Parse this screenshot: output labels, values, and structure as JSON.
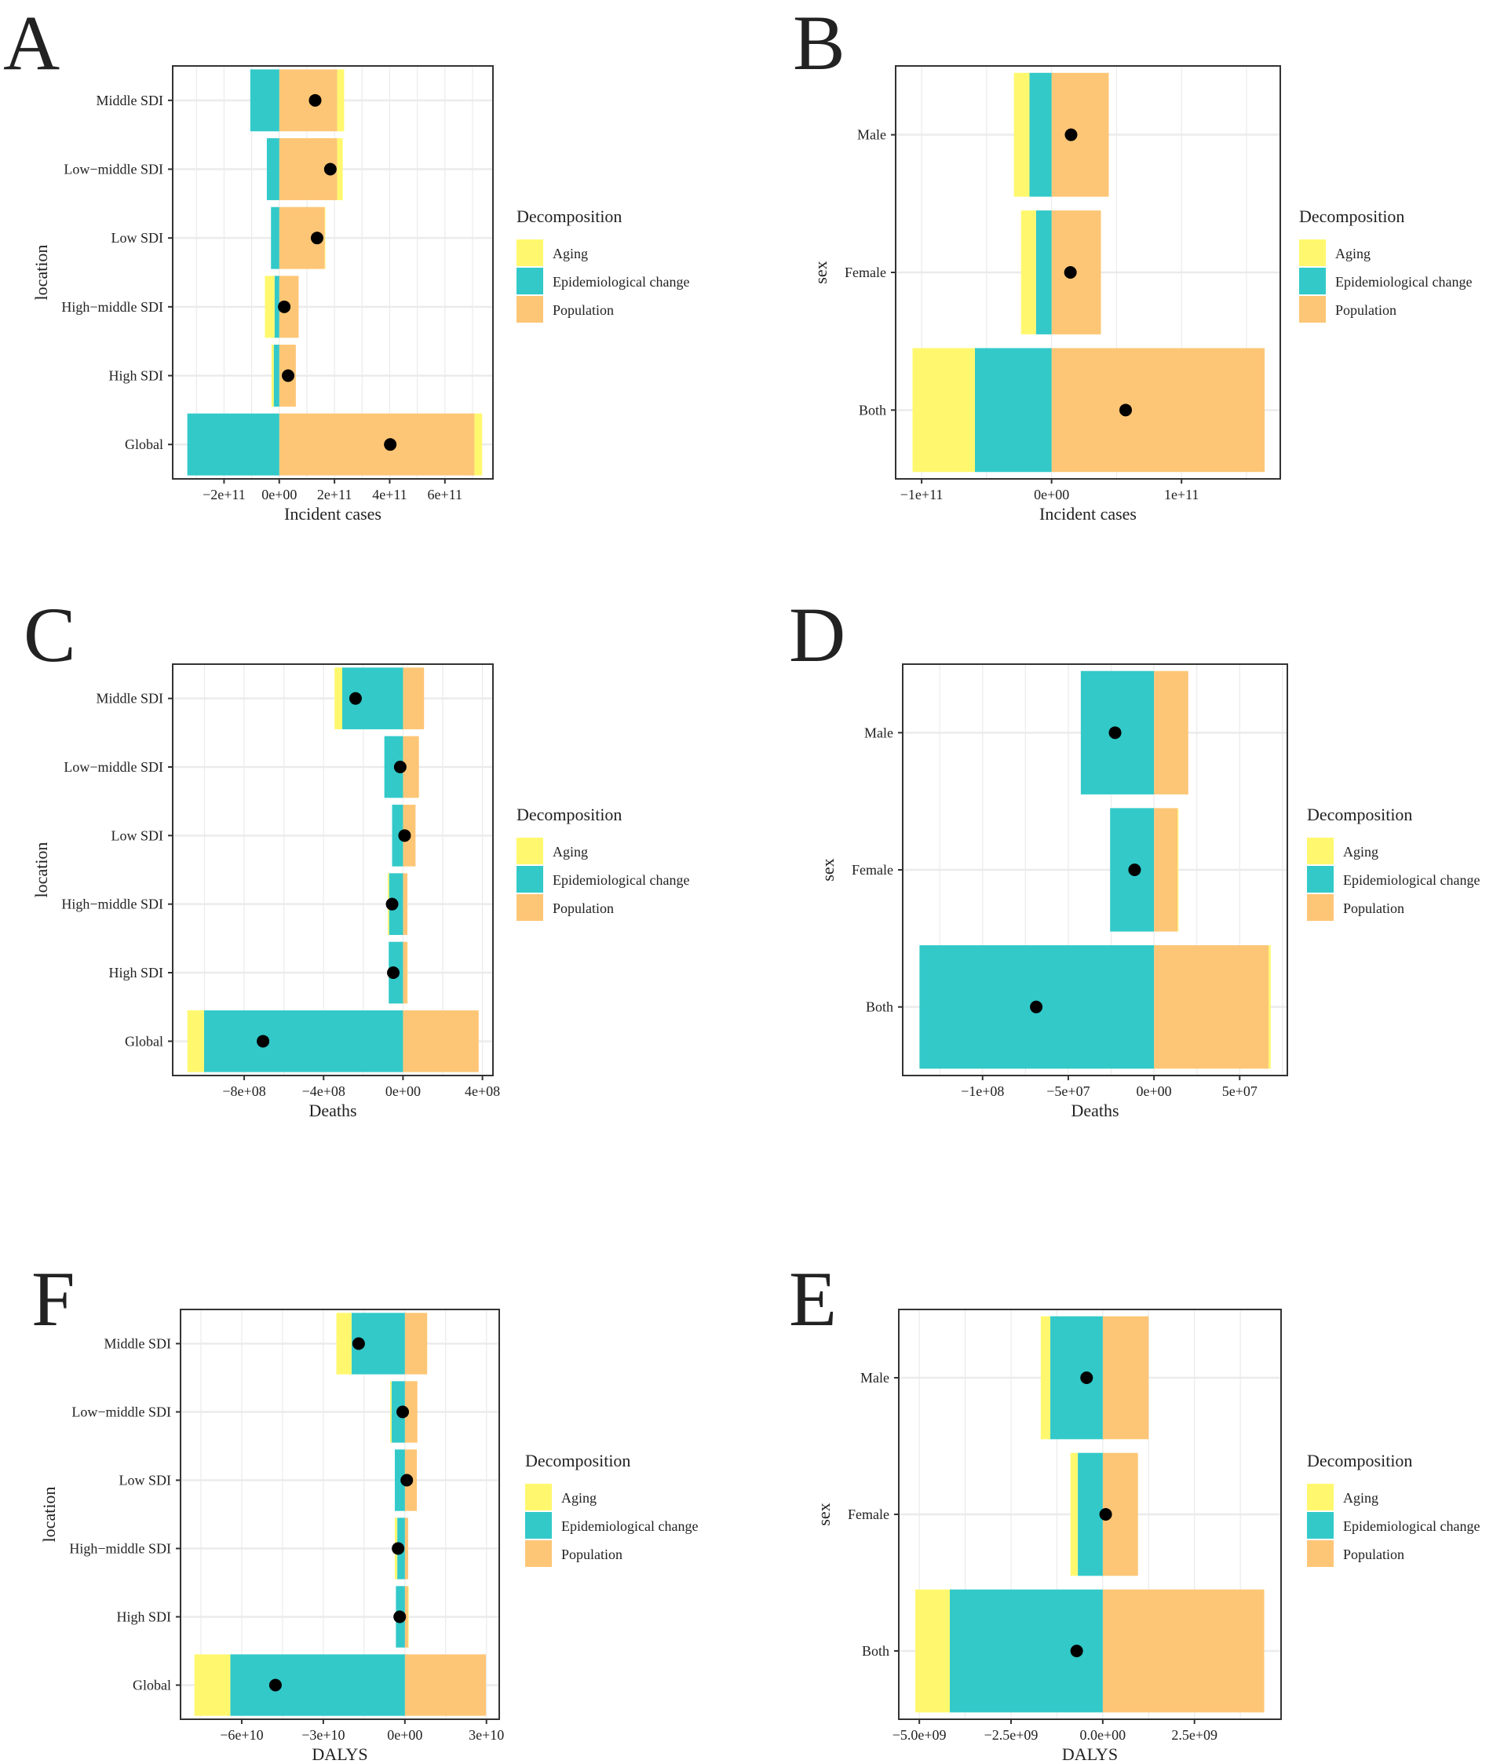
{
  "colors": {
    "Aging": "#FFF86E",
    "Epidemiological change": "#33C9C9",
    "Population": "#FDC676",
    "dot": "#000000"
  },
  "legend": {
    "title": "Decomposition",
    "items": [
      "Aging",
      "Epidemiological change",
      "Population"
    ]
  },
  "chart_data": [
    {
      "panel": "A",
      "type": "bar",
      "orientation": "horizontal",
      "stacked": true,
      "xlabel": "Incident cases",
      "ylabel": "location",
      "xlim": [
        -386000000000.0,
        774000000000.0
      ],
      "x_ticks": [
        -200000000000.0,
        0,
        200000000000.0,
        400000000000.0,
        600000000000.0
      ],
      "x_tick_labels": [
        "−2e+11",
        "0e+00",
        "2e+11",
        "4e+11",
        "6e+11"
      ],
      "categories": [
        "Middle SDI",
        "Low−middle SDI",
        "Low SDI",
        "High−middle SDI",
        "High SDI",
        "Global"
      ],
      "series": [
        {
          "name": "Population",
          "values": [
            210000000000.0,
            210000000000.0,
            165000000000.0,
            70000000000.0,
            60000000000.0,
            707000000000.0
          ]
        },
        {
          "name": "Epidemiological change",
          "values": [
            -105000000000.0,
            -45000000000.0,
            -30000000000.0,
            -17000000000.0,
            -20000000000.0,
            -333000000000.0
          ]
        },
        {
          "name": "Aging",
          "values": [
            25000000000.0,
            20000000000.0,
            2000000000.0,
            -35000000000.0,
            -8000000000.0,
            28000000000.0
          ]
        }
      ],
      "total": [
        130000000000.0,
        185000000000.0,
        137000000000.0,
        18000000000.0,
        32000000000.0,
        402000000000.0
      ]
    },
    {
      "panel": "B",
      "type": "bar",
      "orientation": "horizontal",
      "stacked": true,
      "xlabel": "Incident cases",
      "ylabel": "sex",
      "xlim": [
        -120000000000.0,
        176000000000.0
      ],
      "x_ticks": [
        -100000000000.0,
        0,
        100000000000.0
      ],
      "x_tick_labels": [
        "−1e+11",
        "0e+00",
        "1e+11"
      ],
      "categories": [
        "Male",
        "Female",
        "Both"
      ],
      "series": [
        {
          "name": "Population",
          "values": [
            44000000000.0,
            38000000000.0,
            164000000000.0
          ]
        },
        {
          "name": "Epidemiological change",
          "values": [
            -17000000000.0,
            -12000000000.0,
            -59000000000.0
          ]
        },
        {
          "name": "Aging",
          "values": [
            -12000000000.0,
            -11500000000.0,
            -48000000000.0
          ]
        }
      ],
      "total": [
        15000000000.0,
        14500000000.0,
        57000000000.0
      ]
    },
    {
      "panel": "C",
      "type": "bar",
      "orientation": "horizontal",
      "stacked": true,
      "xlabel": "Deaths",
      "ylabel": "location",
      "xlim": [
        -1160000000.0,
        453000000.0
      ],
      "x_ticks": [
        -800000000.0,
        -400000000.0,
        0,
        400000000.0
      ],
      "x_tick_labels": [
        "−8e+08",
        "−4e+08",
        "0e+00",
        "4e+08"
      ],
      "categories": [
        "Middle SDI",
        "Low−middle SDI",
        "Low SDI",
        "High−middle SDI",
        "High SDI",
        "Global"
      ],
      "series": [
        {
          "name": "Population",
          "values": [
            106000000.0,
            80000000.0,
            63000000.0,
            22000000.0,
            22000000.0,
            381000000.0
          ]
        },
        {
          "name": "Epidemiological change",
          "values": [
            -306000000.0,
            -94000000.0,
            -55000000.0,
            -70000000.0,
            -72000000.0,
            -1002000000.0
          ]
        },
        {
          "name": "Aging",
          "values": [
            -39000000.0,
            0.0,
            0.0,
            -7000000.0,
            1000000.0,
            -84000000.0
          ]
        }
      ],
      "total": [
        -239000000.0,
        -14000000.0,
        8000000.0,
        -55000000.0,
        -49000000.0,
        -705000000.0
      ]
    },
    {
      "panel": "D",
      "type": "bar",
      "orientation": "horizontal",
      "stacked": true,
      "xlabel": "Deaths",
      "ylabel": "sex",
      "xlim": [
        -146600000.0,
        77800000.0
      ],
      "x_ticks": [
        -100000000.0,
        -50000000.0,
        0,
        50000000.0
      ],
      "x_tick_labels": [
        "−1e+08",
        "−5e+07",
        "0e+00",
        "5e+07"
      ],
      "categories": [
        "Male",
        "Female",
        "Both"
      ],
      "series": [
        {
          "name": "Population",
          "values": [
            20000000.0,
            13800000.0,
            66900000.0
          ]
        },
        {
          "name": "Epidemiological change",
          "values": [
            -42700000.0,
            -25600000.0,
            -136800000.0
          ]
        },
        {
          "name": "Aging",
          "values": [
            0.0,
            500000.0,
            1200000.0
          ]
        }
      ],
      "total": [
        -22700000.0,
        -11300000.0,
        -68700000.0
      ]
    },
    {
      "panel": "F",
      "type": "bar",
      "orientation": "horizontal",
      "stacked": true,
      "xlabel": "DALYS",
      "ylabel": "location",
      "xlim": [
        -82500000000.0,
        34700000000.0
      ],
      "x_ticks": [
        -60000000000.0,
        -30000000000.0,
        0,
        30000000000.0
      ],
      "x_tick_labels": [
        "−6e+10",
        "−3e+10",
        "0e+00",
        "3e+10"
      ],
      "categories": [
        "Middle SDI",
        "Low−middle SDI",
        "Low SDI",
        "High−middle SDI",
        "High SDI",
        "Global"
      ],
      "series": [
        {
          "name": "Population",
          "values": [
            8200000000.0,
            4600000000.0,
            4400000000.0,
            1200000000.0,
            1200000000.0,
            29800000000.0
          ]
        },
        {
          "name": "Epidemiological change",
          "values": [
            -19600000000.0,
            -4900000000.0,
            -3700000000.0,
            -2800000000.0,
            -3300000000.0,
            -64200000000.0
          ]
        },
        {
          "name": "Aging",
          "values": [
            -5600000000.0,
            -500000000.0,
            0.0,
            -900000000.0,
            200000000.0,
            -13200000000.0
          ]
        }
      ],
      "total": [
        -17000000000.0,
        -800000000.0,
        700000000.0,
        -2500000000.0,
        -1900000000.0,
        -47600000000.0
      ]
    },
    {
      "panel": "E",
      "type": "bar",
      "orientation": "horizontal",
      "stacked": true,
      "xlabel": "DALYS",
      "ylabel": "sex",
      "xlim": [
        -5560000000.0,
        4860000000.0
      ],
      "x_ticks": [
        -5000000000.0,
        -2500000000.0,
        0,
        2500000000.0
      ],
      "x_tick_labels": [
        "−5.0e+09",
        "−2.5e+09",
        "0.0e+00",
        "2.5e+09"
      ],
      "categories": [
        "Male",
        "Female",
        "Both"
      ],
      "series": [
        {
          "name": "Population",
          "values": [
            1250000000.0,
            960000000.0,
            4400000000.0
          ]
        },
        {
          "name": "Epidemiological change",
          "values": [
            -1430000000.0,
            -680000000.0,
            -4170000000.0
          ]
        },
        {
          "name": "Aging",
          "values": [
            -260000000.0,
            -200000000.0,
            -940000000.0
          ]
        }
      ],
      "total": [
        -440000000.0,
        80000000.0,
        -710000000.0
      ]
    }
  ]
}
